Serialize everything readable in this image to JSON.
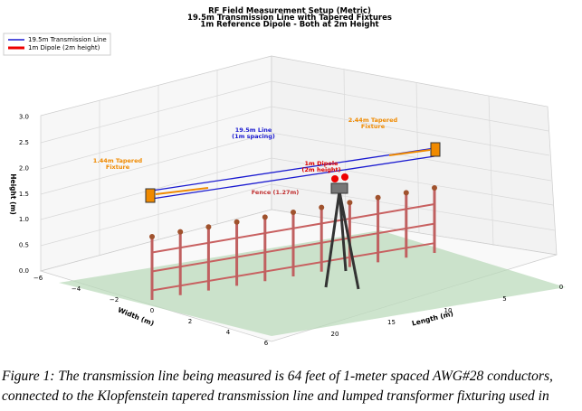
{
  "figure": {
    "title": [
      "RF Field Measurement Setup (Metric)",
      "19.5m Transmission Line with Tapered Fixtures",
      "1m Reference Dipole - Both at 2m Height"
    ],
    "legend": [
      "19.5m Transmission Line",
      "1m Dipole (2m height)"
    ],
    "z_label": "Height (m)",
    "z_ticks": [
      "0.0",
      "0.5",
      "1.0",
      "1.5",
      "2.0",
      "2.5",
      "3.0"
    ],
    "x_label": "Width (m)",
    "x_ticks": [
      "−6",
      "−4",
      "−2",
      "0",
      "2",
      "4",
      "6"
    ],
    "y_label": "Length (m)",
    "y_ticks": [
      "20",
      "15",
      "10",
      "5",
      "0"
    ],
    "annotations": {
      "line": [
        "19.5m Line",
        "(1m spacing)"
      ],
      "fixture_far": [
        "2.44m Tapered",
        "Fixture"
      ],
      "fixture_near": [
        "1.44m Tapered",
        "Fixture"
      ],
      "dipole": [
        "1m Dipole",
        "(2m height)"
      ],
      "fence": "Fence (1.27m)"
    }
  },
  "caption": [
    "Figure 1: The transmission line being measured is 64 feet of 1-meter spaced AWG#28 conductors,",
    "connected to the Klopfenstein tapered transmission line and lumped transformer fixturing used in"
  ]
}
